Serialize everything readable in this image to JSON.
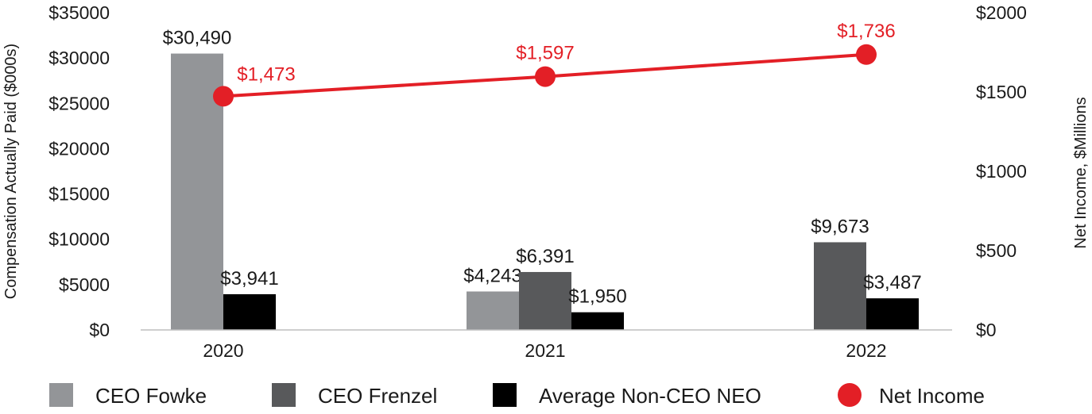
{
  "chart_data": {
    "type": "bar",
    "categories": [
      "2020",
      "2021",
      "2022"
    ],
    "series": [
      {
        "name": "CEO Fowke",
        "values": [
          30490,
          4243,
          null
        ],
        "labels": [
          "$30,490",
          "$4,243",
          ""
        ],
        "color": "#939598"
      },
      {
        "name": "CEO Frenzel",
        "values": [
          null,
          6391,
          9673
        ],
        "labels": [
          "",
          "$6,391",
          "$9,673"
        ],
        "color": "#58595b"
      },
      {
        "name": "Average Non-CEO NEO",
        "values": [
          3941,
          1950,
          3487
        ],
        "labels": [
          "$3,941",
          "$1,950",
          "$3,487"
        ],
        "color": "#000000"
      }
    ],
    "line_series": {
      "name": "Net Income",
      "type": "line",
      "axis": "right",
      "values": [
        1473,
        1597,
        1736
      ],
      "labels": [
        "$1,473",
        "$1,597",
        "$1,736"
      ],
      "color": "#e31f26"
    },
    "y_left": {
      "label": "Compensation Actually Paid ($000s)",
      "lim": [
        0,
        35000
      ],
      "ticks": [
        "$0",
        "$5000",
        "$10000",
        "$15000",
        "$20000",
        "$25000",
        "$30000",
        "$35000"
      ]
    },
    "y_right": {
      "label": "Net Income, $Millions",
      "lim": [
        0,
        2000
      ],
      "ticks": [
        "$0",
        "$500",
        "$1000",
        "$1500",
        "$2000"
      ]
    },
    "title": "",
    "xlabel": "",
    "grid": false,
    "legend_position": "bottom"
  }
}
